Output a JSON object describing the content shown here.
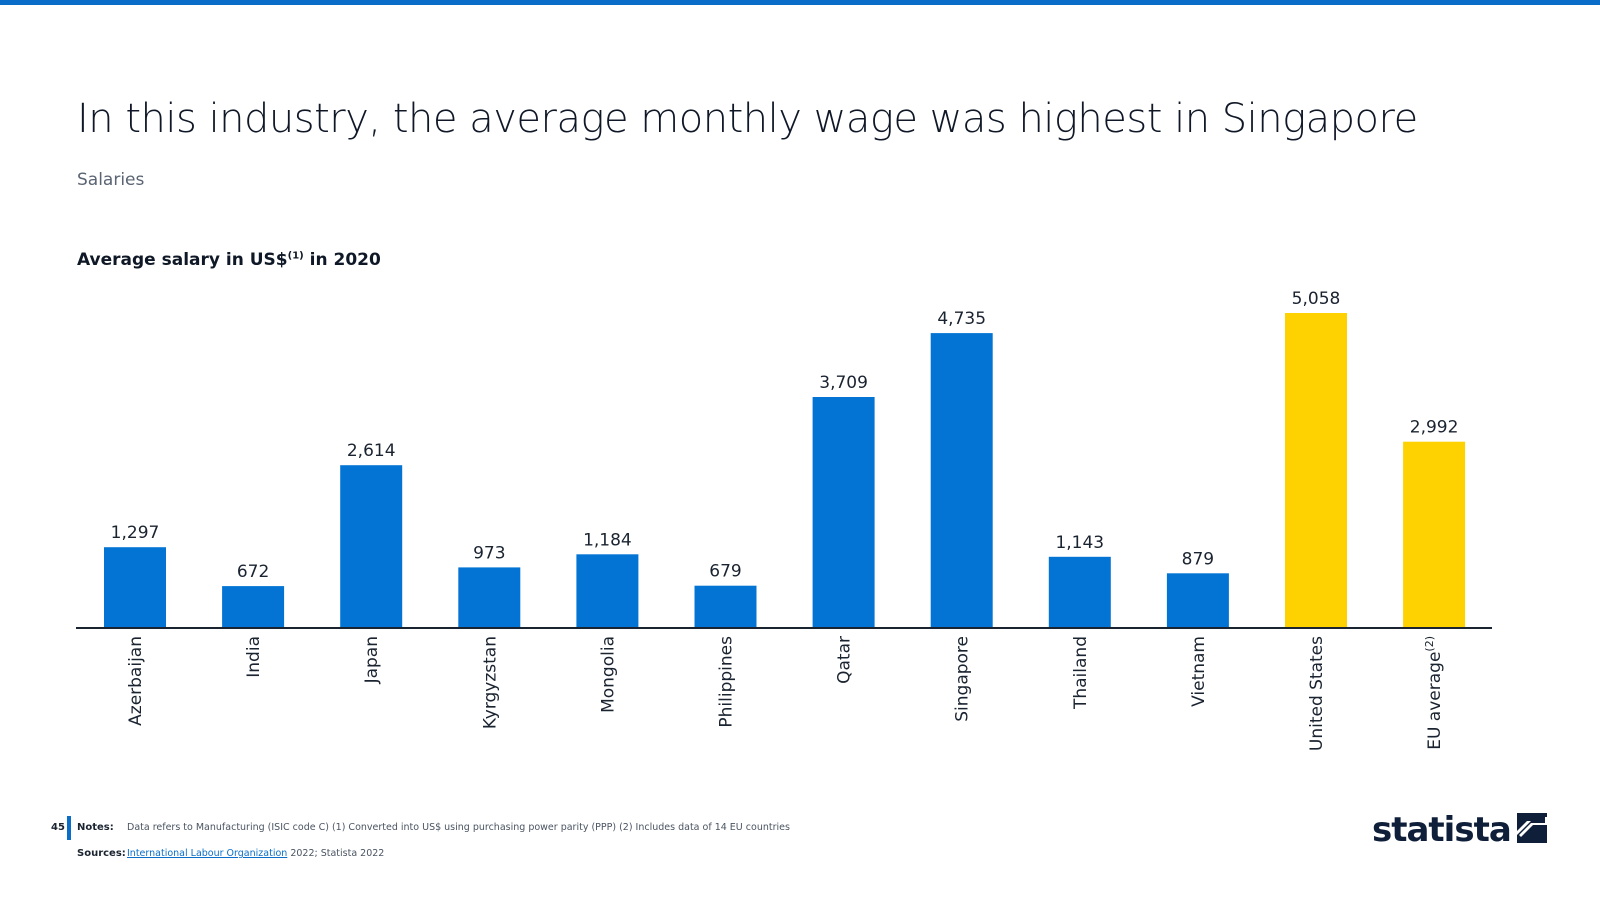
{
  "header": {
    "title": "In this industry, the average monthly wage was highest in Singapore",
    "subtitle": "Salaries",
    "chart_heading": "Average salary in US$",
    "chart_heading_note": "(1)",
    "chart_heading_suffix": " in 2020"
  },
  "colors": {
    "accent": "#0a6ec8",
    "bar_primary": "#0474d4",
    "bar_highlight": "#fdd200",
    "axis": "#1a2330"
  },
  "chart_data": {
    "type": "bar",
    "title": "Average salary in US$(1) in 2020",
    "xlabel": "",
    "ylabel": "",
    "ylim": [
      0,
      5058
    ],
    "grid": false,
    "categories": [
      "Azerbaijan",
      "India",
      "Japan",
      "Kyrgyzstan",
      "Mongolia",
      "Philippines",
      "Qatar",
      "Singapore",
      "Thailand",
      "Vietnam",
      "United States",
      "EU average"
    ],
    "values": [
      1297,
      672,
      2614,
      973,
      1184,
      679,
      3709,
      4735,
      1143,
      879,
      5058,
      2992
    ],
    "value_labels": [
      "1,297",
      "672",
      "2,614",
      "973",
      "1,184",
      "679",
      "3,709",
      "4,735",
      "1,143",
      "879",
      "5,058",
      "2,992"
    ],
    "highlighted": [
      false,
      false,
      false,
      false,
      false,
      false,
      false,
      false,
      false,
      false,
      true,
      true
    ],
    "category_notes": [
      "",
      "",
      "",
      "",
      "",
      "",
      "",
      "",
      "",
      "",
      "",
      "(2)"
    ]
  },
  "footer": {
    "page_number": "45",
    "notes_label": "Notes:",
    "notes_text": "Data refers to Manufacturing (ISIC code C) (1) Converted into US$ using purchasing power parity (PPP) (2) Includes data of 14 EU countries",
    "sources_label": "Sources:",
    "sources_link": "International Labour Organization",
    "sources_rest": " 2022; Statista 2022",
    "brand": "statista",
    "brand_icon": "statista-logo-icon"
  }
}
